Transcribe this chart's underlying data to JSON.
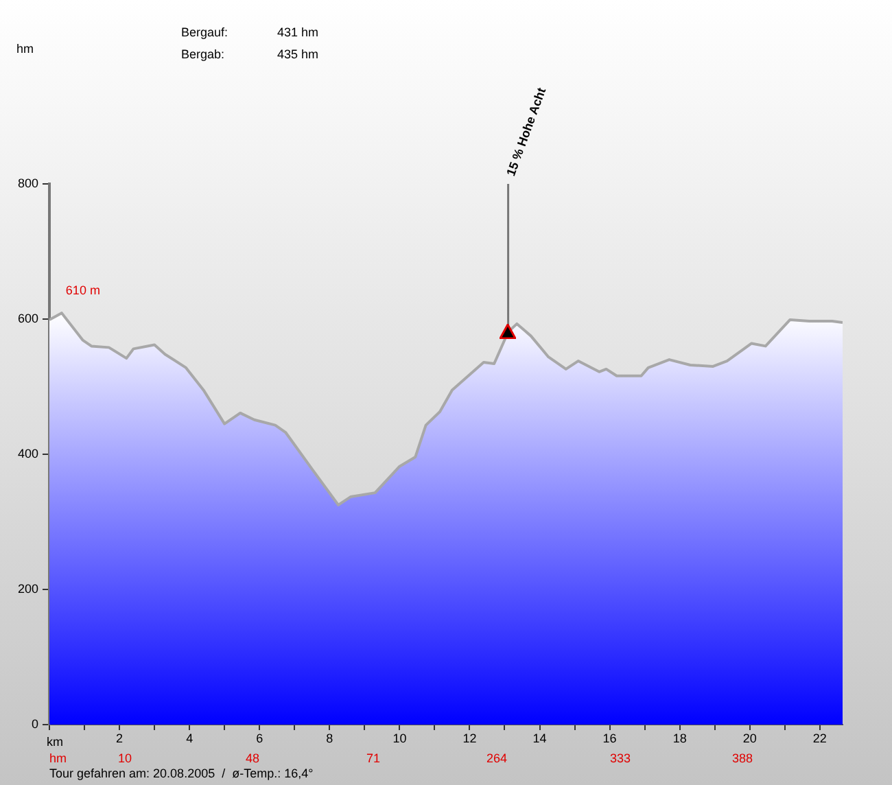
{
  "chart_data": {
    "type": "area",
    "xlabel": "km",
    "x": [
      0,
      0.35,
      0.95,
      1.2,
      1.7,
      2.2,
      2.4,
      3.0,
      3.3,
      3.9,
      4.4,
      5.0,
      5.45,
      5.85,
      6.45,
      6.75,
      7.5,
      8.25,
      8.6,
      9.3,
      10.0,
      10.45,
      10.75,
      11.15,
      11.5,
      12.4,
      12.7,
      13.1,
      13.35,
      13.75,
      14.25,
      14.75,
      15.1,
      15.7,
      15.9,
      16.2,
      16.9,
      17.1,
      17.7,
      18.3,
      18.95,
      19.35,
      20.05,
      20.45,
      21.15,
      21.7,
      22.35,
      22.65
    ],
    "series": [
      {
        "color": "#0000ff",
        "values": [
          599,
          609,
          569,
          560,
          558,
          542,
          556,
          562,
          548,
          528,
          495,
          445,
          461,
          451,
          443,
          432,
          378,
          325,
          337,
          343,
          382,
          396,
          443,
          463,
          495,
          536,
          534,
          581,
          593,
          575,
          544,
          526,
          538,
          522,
          526,
          516,
          516,
          528,
          540,
          532,
          530,
          538,
          564,
          560,
          599,
          597,
          597,
          595
        ]
      }
    ],
    "xlim": [
      0,
      22.65
    ],
    "ylim": [
      0,
      800
    ],
    "xticks": [
      {
        "value": 0,
        "label": null
      },
      {
        "value": 1,
        "label": null
      },
      2,
      {
        "value": 3,
        "label": null
      },
      4,
      {
        "value": 5,
        "label": null
      },
      6,
      {
        "value": 7,
        "label": null
      },
      8,
      {
        "value": 9,
        "label": null
      },
      10,
      {
        "value": 11,
        "label": null
      },
      12,
      {
        "value": 13,
        "label": null
      },
      14,
      {
        "value": 15,
        "label": null
      },
      16,
      {
        "value": 17,
        "label": null
      },
      18,
      {
        "value": 19,
        "label": null
      },
      20,
      {
        "value": 21,
        "label": null
      },
      22
    ],
    "yticks": [
      0,
      200,
      400,
      600,
      800
    ],
    "grid": false,
    "legend": false,
    "marker": "none",
    "annotations": [
      "hm",
      "Bergauf:",
      "431 hm",
      "Bergab:",
      "435 hm",
      "hm",
      "10",
      "48",
      "71",
      "264",
      "333",
      "388",
      "Tour gefahren am: 20.08.2005  /  ø-Temp.: 16,4°",
      {
        "text": "610 m",
        "x": 0.35,
        "y": 609
      },
      {
        "text": "15 % Hohe Acht",
        "x": 13.1,
        "y": 581
      }
    ]
  }
}
